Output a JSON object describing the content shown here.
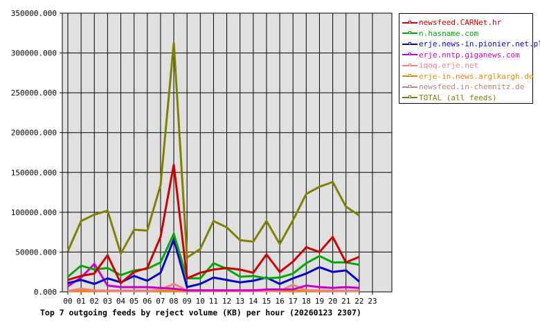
{
  "chart_data": {
    "type": "line",
    "title": "Top 7 outgoing feeds by reject volume (KB) per hour (20260123 2307)",
    "xlabel": "",
    "ylabel": "",
    "ylim": [
      0,
      350000
    ],
    "grid": true,
    "legend_position": "right",
    "y_ticks": [
      "0.000",
      "50000.000",
      "100000.000",
      "150000.000",
      "200000.000",
      "250000.000",
      "300000.000",
      "350000.000"
    ],
    "categories": [
      "00",
      "01",
      "02",
      "03",
      "04",
      "05",
      "06",
      "07",
      "08",
      "09",
      "10",
      "11",
      "12",
      "13",
      "14",
      "15",
      "16",
      "17",
      "18",
      "19",
      "20",
      "21",
      "22",
      "23"
    ],
    "series": [
      {
        "name": "newsfeed.CARNet.hr",
        "color": "#cc0000",
        "values": [
          15000,
          20000,
          23000,
          46000,
          11000,
          25000,
          30000,
          69000,
          160000,
          17000,
          24000,
          28000,
          30000,
          28000,
          24000,
          47000,
          25000,
          38000,
          56000,
          50000,
          69000,
          37000,
          44000
        ]
      },
      {
        "name": "n.hasname.com",
        "color": "#00aa00",
        "values": [
          19000,
          33000,
          28000,
          30000,
          21000,
          27000,
          29000,
          37000,
          73000,
          17000,
          17000,
          36000,
          29000,
          19000,
          20000,
          17000,
          18000,
          23000,
          36000,
          45000,
          37000,
          37000,
          34000
        ]
      },
      {
        "name": "erje.news-in.pionier.net.pl",
        "color": "#0000cc",
        "values": [
          11000,
          15000,
          10000,
          17000,
          12000,
          20000,
          14000,
          24000,
          66000,
          6000,
          10000,
          18000,
          15000,
          12000,
          14000,
          18000,
          10000,
          17000,
          23000,
          31000,
          25000,
          27000,
          13000
        ]
      },
      {
        "name": "erje.nntp.giganews.com",
        "color": "#cc00cc",
        "values": [
          7000,
          18000,
          35000,
          8000,
          6000,
          6000,
          6000,
          5000,
          4000,
          2000,
          2000,
          2000,
          2000,
          2000,
          2000,
          3000,
          3000,
          3000,
          8000,
          6000,
          5000,
          6000,
          5000
        ]
      },
      {
        "name": "iqoq.erje.net",
        "color": "#f08080",
        "values": [
          1000,
          4000,
          2000,
          1000,
          1000,
          1000,
          1000,
          3000,
          10000,
          2000,
          1000,
          1000,
          1000,
          1000,
          1000,
          1000,
          1000,
          9000,
          2000,
          2000,
          1000,
          1000,
          1000
        ]
      },
      {
        "name": "erje-in.news.arglkargh.de",
        "color": "#ee8800",
        "values": [
          1000,
          1000,
          1000,
          1000,
          1000,
          1000,
          1000,
          1000,
          1000,
          1000,
          1000,
          1000,
          1000,
          1000,
          1000,
          1000,
          1000,
          1000,
          1000,
          1000,
          1000,
          1000,
          1000
        ]
      },
      {
        "name": "newsfeed.in-chemnitz.de",
        "color": "#c08080",
        "values": [
          1500,
          1500,
          1500,
          1500,
          1500,
          1500,
          1500,
          1500,
          1500,
          1500,
          1500,
          1500,
          1500,
          1500,
          1500,
          1500,
          1500,
          1500,
          1500,
          1500,
          1500,
          1500,
          1500
        ]
      },
      {
        "name": "TOTAL (all feeds)",
        "color": "#808000",
        "values": [
          51000,
          89000,
          97000,
          102000,
          48000,
          78000,
          77000,
          134000,
          313000,
          43000,
          54000,
          89000,
          81000,
          65000,
          63000,
          89000,
          60000,
          90000,
          123000,
          132000,
          138000,
          107000,
          96000
        ]
      }
    ]
  },
  "legend": {
    "items": [
      {
        "label": "newsfeed.CARNet.hr",
        "color": "#cc0000"
      },
      {
        "label": "n.hasname.com",
        "color": "#00aa00"
      },
      {
        "label": "erje.news-in.pionier.net.pl",
        "color": "#0000cc"
      },
      {
        "label": "erje.nntp.giganews.com",
        "color": "#cc00cc"
      },
      {
        "label": "iqoq.erje.net",
        "color": "#f08080"
      },
      {
        "label": "erje-in.news.arglkargh.de",
        "color": "#ee8800"
      },
      {
        "label": "newsfeed.in-chemnitz.de",
        "color": "#c08080"
      },
      {
        "label": "TOTAL (all feeds)",
        "color": "#808000"
      }
    ]
  },
  "caption": "Top 7 outgoing feeds by reject volume (KB) per hour (20260123 2307)"
}
